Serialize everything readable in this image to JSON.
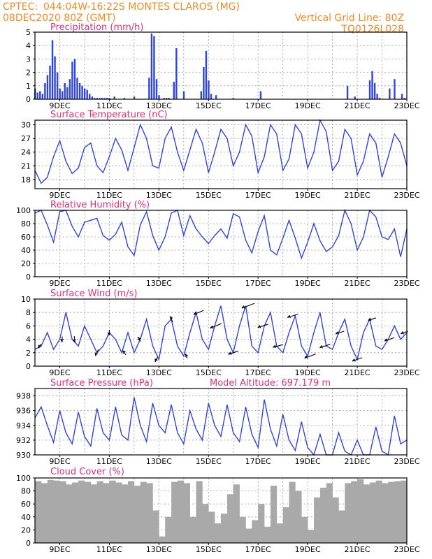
{
  "header": {
    "line1_left": "CPTEC:",
    "location": "044:04W-16:22S   MONTES CLAROS (MG)",
    "line2_left": "08DEC2020 80Z (GMT)",
    "grid_note": "Vertical Grid Line: 80Z",
    "code": "TQ0126L028",
    "model_altitude": "Model Altitude: 697.179 m"
  },
  "colors": {
    "header": "#f08a24",
    "title": "#e0307a",
    "line": "#2f45d8",
    "cloud": "#a9a9a9",
    "arrow": "#000000"
  },
  "chart_data": [
    {
      "id": "precip",
      "type": "bar",
      "title": "Precipitation (mm/h)",
      "x": [
        "8.0",
        "8.1",
        "8.2",
        "8.3",
        "8.4",
        "8.5",
        "8.6",
        "8.7",
        "8.8",
        "8.9",
        "9.0",
        "9.1",
        "9.2",
        "9.3",
        "9.4",
        "9.5",
        "9.6",
        "9.7",
        "9.8",
        "9.9",
        "10.0",
        "10.1",
        "10.2",
        "10.3",
        "10.4",
        "10.5",
        "10.6",
        "10.7",
        "10.8",
        "10.9",
        "11.0",
        "11.2",
        "11.6",
        "12.0",
        "12.6",
        "12.7",
        "12.8",
        "12.9",
        "13.0",
        "13.2",
        "13.3",
        "13.4",
        "13.6",
        "13.7",
        "14.0",
        "14.7",
        "14.8",
        "14.9",
        "15.0",
        "15.1",
        "15.3",
        "16.0",
        "17.1",
        "20.6",
        "20.9",
        "21.5",
        "21.6",
        "21.7",
        "21.8",
        "21.9",
        "22.3",
        "22.5",
        "22.8",
        "22.9"
      ],
      "values": [
        0.8,
        0.5,
        0.6,
        0.4,
        1.2,
        1.8,
        2.5,
        4.4,
        3.2,
        2.0,
        0.8,
        0.6,
        1.2,
        0.9,
        1.5,
        2.8,
        3.0,
        1.6,
        1.2,
        1.0,
        0.8,
        0.7,
        0.4,
        0.2,
        0.1,
        0.1,
        0.1,
        0.1,
        0.1,
        0.1,
        0.1,
        0.2,
        0.1,
        0.2,
        1.6,
        4.9,
        4.7,
        1.5,
        0.3,
        0.1,
        0.1,
        0.1,
        1.3,
        3.8,
        0.6,
        0.6,
        2.4,
        3.6,
        1.4,
        0.4,
        0.3,
        0.1,
        0.6,
        1.0,
        0.2,
        1.4,
        2.1,
        1.2,
        0.4,
        0.1,
        0.8,
        1.5,
        0.4,
        0.1
      ],
      "ylim": [
        0,
        5
      ],
      "yticks": [
        0,
        1,
        2,
        3,
        4,
        5
      ],
      "xticks": [
        "9DEC",
        "11DEC",
        "13DEC",
        "15DEC",
        "17DEC",
        "19DEC",
        "21DEC",
        "23DEC"
      ]
    },
    {
      "id": "temp",
      "type": "line",
      "title": "Surface Temperature (nC)",
      "x": [
        8.0,
        8.25,
        8.5,
        8.75,
        9.0,
        9.25,
        9.5,
        9.75,
        10.0,
        10.25,
        10.5,
        10.75,
        11.0,
        11.25,
        11.5,
        11.75,
        12.0,
        12.25,
        12.5,
        12.75,
        13.0,
        13.25,
        13.5,
        13.75,
        14.0,
        14.25,
        14.5,
        14.75,
        15.0,
        15.25,
        15.5,
        15.75,
        16.0,
        16.25,
        16.5,
        16.75,
        17.0,
        17.25,
        17.5,
        17.75,
        18.0,
        18.25,
        18.5,
        18.75,
        19.0,
        19.25,
        19.5,
        19.75,
        20.0,
        20.25,
        20.5,
        20.75,
        21.0,
        21.25,
        21.5,
        21.75,
        22.0,
        22.25,
        22.5,
        22.75,
        23.0
      ],
      "values": [
        20,
        17.2,
        18.5,
        23,
        26.5,
        22,
        19.3,
        20.5,
        25,
        26,
        21,
        19.5,
        23,
        27,
        24.5,
        20,
        25,
        30,
        27,
        21,
        20.5,
        27,
        29.5,
        24,
        20,
        24.5,
        29,
        26,
        19.5,
        24,
        29,
        27,
        21,
        24,
        30,
        27.5,
        19.5,
        23,
        30,
        28,
        20,
        22.5,
        30,
        28,
        20.5,
        24,
        31,
        28.5,
        20,
        22,
        29,
        27,
        19,
        22,
        28,
        26,
        18.5,
        23,
        28,
        26,
        21
      ],
      "ylim": [
        16,
        31
      ],
      "yticks": [
        18,
        21,
        24,
        27,
        30
      ],
      "xticks": [
        "9DEC",
        "11DEC",
        "13DEC",
        "15DEC",
        "17DEC",
        "19DEC",
        "21DEC",
        "23DEC"
      ]
    },
    {
      "id": "rh",
      "type": "line",
      "title": "Relative Humidity (%)",
      "x": [
        8.0,
        8.25,
        8.5,
        8.75,
        9.0,
        9.25,
        9.5,
        9.75,
        10.0,
        10.25,
        10.5,
        10.75,
        11.0,
        11.25,
        11.5,
        11.75,
        12.0,
        12.25,
        12.5,
        12.75,
        13.0,
        13.25,
        13.5,
        13.75,
        14.0,
        14.25,
        14.5,
        14.75,
        15.0,
        15.25,
        15.5,
        15.75,
        16.0,
        16.25,
        16.5,
        16.75,
        17.0,
        17.25,
        17.5,
        17.75,
        18.0,
        18.25,
        18.5,
        18.75,
        19.0,
        19.25,
        19.5,
        19.75,
        20.0,
        20.25,
        20.5,
        20.75,
        21.0,
        21.25,
        21.5,
        21.75,
        22.0,
        22.25,
        22.5,
        22.75,
        23.0
      ],
      "values": [
        96,
        100,
        78,
        52,
        98,
        100,
        76,
        60,
        82,
        85,
        88,
        62,
        55,
        64,
        82,
        45,
        32,
        78,
        98,
        62,
        40,
        60,
        96,
        100,
        62,
        92,
        72,
        60,
        50,
        62,
        72,
        58,
        95,
        90,
        55,
        36,
        68,
        92,
        40,
        33,
        58,
        85,
        58,
        28,
        52,
        80,
        54,
        38,
        45,
        62,
        100,
        80,
        40,
        60,
        100,
        90,
        60,
        56,
        72,
        30,
        72
      ],
      "ylim": [
        0,
        100
      ],
      "yticks": [
        0,
        20,
        40,
        60,
        80,
        100
      ],
      "xticks": [
        "9DEC",
        "11DEC",
        "13DEC",
        "15DEC",
        "17DEC",
        "19DEC",
        "21DEC",
        "23DEC"
      ]
    },
    {
      "id": "wind",
      "type": "line",
      "title": "Surface Wind (m/s)",
      "x": [
        8.0,
        8.25,
        8.5,
        8.75,
        9.0,
        9.25,
        9.5,
        9.75,
        10.0,
        10.25,
        10.5,
        10.75,
        11.0,
        11.25,
        11.5,
        11.75,
        12.0,
        12.25,
        12.5,
        12.75,
        13.0,
        13.25,
        13.5,
        13.75,
        14.0,
        14.25,
        14.5,
        14.75,
        15.0,
        15.25,
        15.5,
        15.75,
        16.0,
        16.25,
        16.5,
        16.75,
        17.0,
        17.25,
        17.5,
        17.75,
        18.0,
        18.25,
        18.5,
        18.75,
        19.0,
        19.25,
        19.5,
        19.75,
        20.0,
        20.25,
        20.5,
        20.75,
        21.0,
        21.25,
        21.5,
        21.75,
        22.0,
        22.25,
        22.5,
        22.75,
        23.0
      ],
      "values": [
        2.5,
        3,
        5,
        2.5,
        4,
        8,
        4,
        3,
        6,
        4,
        2,
        3,
        5,
        4,
        2,
        5,
        2,
        4,
        7,
        3,
        1,
        6,
        7,
        3,
        1.5,
        5,
        8,
        4,
        2.5,
        6,
        9,
        4,
        2,
        6,
        9,
        3,
        2,
        6,
        8,
        3,
        2,
        5,
        7.5,
        3,
        1.5,
        5,
        8,
        3,
        2.5,
        5,
        7,
        3,
        1,
        5,
        7,
        3,
        2.5,
        4,
        6,
        4,
        5
      ],
      "ylim": [
        0,
        10
      ],
      "yticks": [
        0,
        2,
        4,
        6,
        8,
        10
      ],
      "arrows": [
        {
          "x": 8.2,
          "dx": -3,
          "dy": 6
        },
        {
          "x": 9.1,
          "dx": 0,
          "dy": 8
        },
        {
          "x": 9.6,
          "dx": 1,
          "dy": 9
        },
        {
          "x": 10.5,
          "dx": -4,
          "dy": 9
        },
        {
          "x": 11.0,
          "dx": 0,
          "dy": 8
        },
        {
          "x": 11.6,
          "dx": -5,
          "dy": -6
        },
        {
          "x": 12.2,
          "dx": -4,
          "dy": -6
        },
        {
          "x": 12.9,
          "dx": -3,
          "dy": 7
        },
        {
          "x": 13.5,
          "dx": -4,
          "dy": -8
        },
        {
          "x": 14.1,
          "dx": -3,
          "dy": -6
        },
        {
          "x": 14.6,
          "dx": -14,
          "dy": 6
        },
        {
          "x": 15.3,
          "dx": -16,
          "dy": 7
        },
        {
          "x": 16.0,
          "dx": -14,
          "dy": 5
        },
        {
          "x": 16.6,
          "dx": -18,
          "dy": 7
        },
        {
          "x": 17.2,
          "dx": -15,
          "dy": 5
        },
        {
          "x": 17.8,
          "dx": -14,
          "dy": 4
        },
        {
          "x": 18.4,
          "dx": -15,
          "dy": 5
        },
        {
          "x": 19.1,
          "dx": -16,
          "dy": 6
        },
        {
          "x": 19.7,
          "dx": -15,
          "dy": 5
        },
        {
          "x": 20.3,
          "dx": -12,
          "dy": 4
        },
        {
          "x": 21.0,
          "dx": -14,
          "dy": 5
        },
        {
          "x": 21.6,
          "dx": -11,
          "dy": 4
        },
        {
          "x": 22.3,
          "dx": -14,
          "dy": 5
        },
        {
          "x": 22.9,
          "dx": -10,
          "dy": 4
        }
      ],
      "xticks": [
        "9DEC",
        "11DEC",
        "13DEC",
        "15DEC",
        "17DEC",
        "19DEC",
        "21DEC",
        "23DEC"
      ]
    },
    {
      "id": "pres",
      "type": "line",
      "title": "Surface Pressure (hPa)",
      "x": [
        8.0,
        8.25,
        8.5,
        8.75,
        9.0,
        9.25,
        9.5,
        9.75,
        10.0,
        10.25,
        10.5,
        10.75,
        11.0,
        11.25,
        11.5,
        11.75,
        12.0,
        12.25,
        12.5,
        12.75,
        13.0,
        13.25,
        13.5,
        13.75,
        14.0,
        14.25,
        14.5,
        14.75,
        15.0,
        15.25,
        15.5,
        15.75,
        16.0,
        16.25,
        16.5,
        16.75,
        17.0,
        17.25,
        17.5,
        17.75,
        18.0,
        18.25,
        18.5,
        18.75,
        19.0,
        19.25,
        19.5,
        19.75,
        20.0,
        20.25,
        20.5,
        20.75,
        21.0,
        21.25,
        21.5,
        21.75,
        22.0,
        22.25,
        22.5,
        22.75,
        23.0
      ],
      "values": [
        935,
        936.5,
        934,
        931.7,
        936,
        933,
        931.5,
        935.8,
        932.5,
        931.2,
        936.3,
        933,
        932,
        936.5,
        932.7,
        932,
        937.8,
        934,
        931.8,
        937,
        934,
        933,
        936.8,
        933,
        931.5,
        936,
        933.5,
        932,
        937,
        934,
        932.5,
        936.8,
        933,
        931.8,
        936.5,
        932.8,
        931,
        937.5,
        933.5,
        931.2,
        935.5,
        932,
        930.6,
        934.5,
        931,
        930,
        932.8,
        930,
        929.5,
        933,
        930.5,
        930,
        932,
        930,
        929.5,
        933.8,
        930.5,
        930,
        935.3,
        931.5,
        932
      ],
      "ylim": [
        930,
        939
      ],
      "yticks": [
        930,
        932,
        934,
        936,
        938
      ],
      "xticks": [
        "9DEC",
        "11DEC",
        "13DEC",
        "15DEC",
        "17DEC",
        "19DEC",
        "21DEC",
        "23DEC"
      ]
    },
    {
      "id": "cloud",
      "type": "bar",
      "title": "Cloud Cover (%)",
      "x": [
        8.0,
        8.25,
        8.5,
        8.75,
        9.0,
        9.25,
        9.5,
        9.75,
        10.0,
        10.25,
        10.5,
        10.75,
        11.0,
        11.25,
        11.5,
        11.75,
        12.0,
        12.25,
        12.5,
        12.75,
        13.0,
        13.25,
        13.5,
        13.75,
        14.0,
        14.25,
        14.5,
        14.75,
        15.0,
        15.25,
        15.5,
        15.75,
        16.0,
        16.25,
        16.5,
        16.75,
        17.0,
        17.25,
        17.5,
        17.75,
        18.0,
        18.25,
        18.5,
        18.75,
        19.0,
        19.25,
        19.5,
        19.75,
        20.0,
        20.25,
        20.5,
        20.75,
        21.0,
        21.25,
        21.5,
        21.75,
        22.0,
        22.25,
        22.5,
        22.75
      ],
      "values": [
        95,
        92,
        97,
        96,
        95,
        90,
        93,
        96,
        94,
        90,
        95,
        92,
        96,
        93,
        90,
        95,
        88,
        94,
        92,
        50,
        10,
        40,
        94,
        96,
        92,
        40,
        95,
        60,
        48,
        30,
        45,
        75,
        90,
        40,
        22,
        35,
        60,
        25,
        88,
        30,
        55,
        94,
        80,
        40,
        20,
        70,
        85,
        92,
        70,
        50,
        92,
        95,
        98,
        90,
        93,
        96,
        92,
        94,
        95,
        96
      ],
      "ylim": [
        0,
        100
      ],
      "yticks": [
        0,
        20,
        40,
        60,
        80,
        100
      ],
      "xticks": [
        "9DEC",
        "11DEC",
        "13DEC",
        "15DEC",
        "17DEC",
        "19DEC",
        "21DEC",
        "23DEC"
      ]
    }
  ]
}
